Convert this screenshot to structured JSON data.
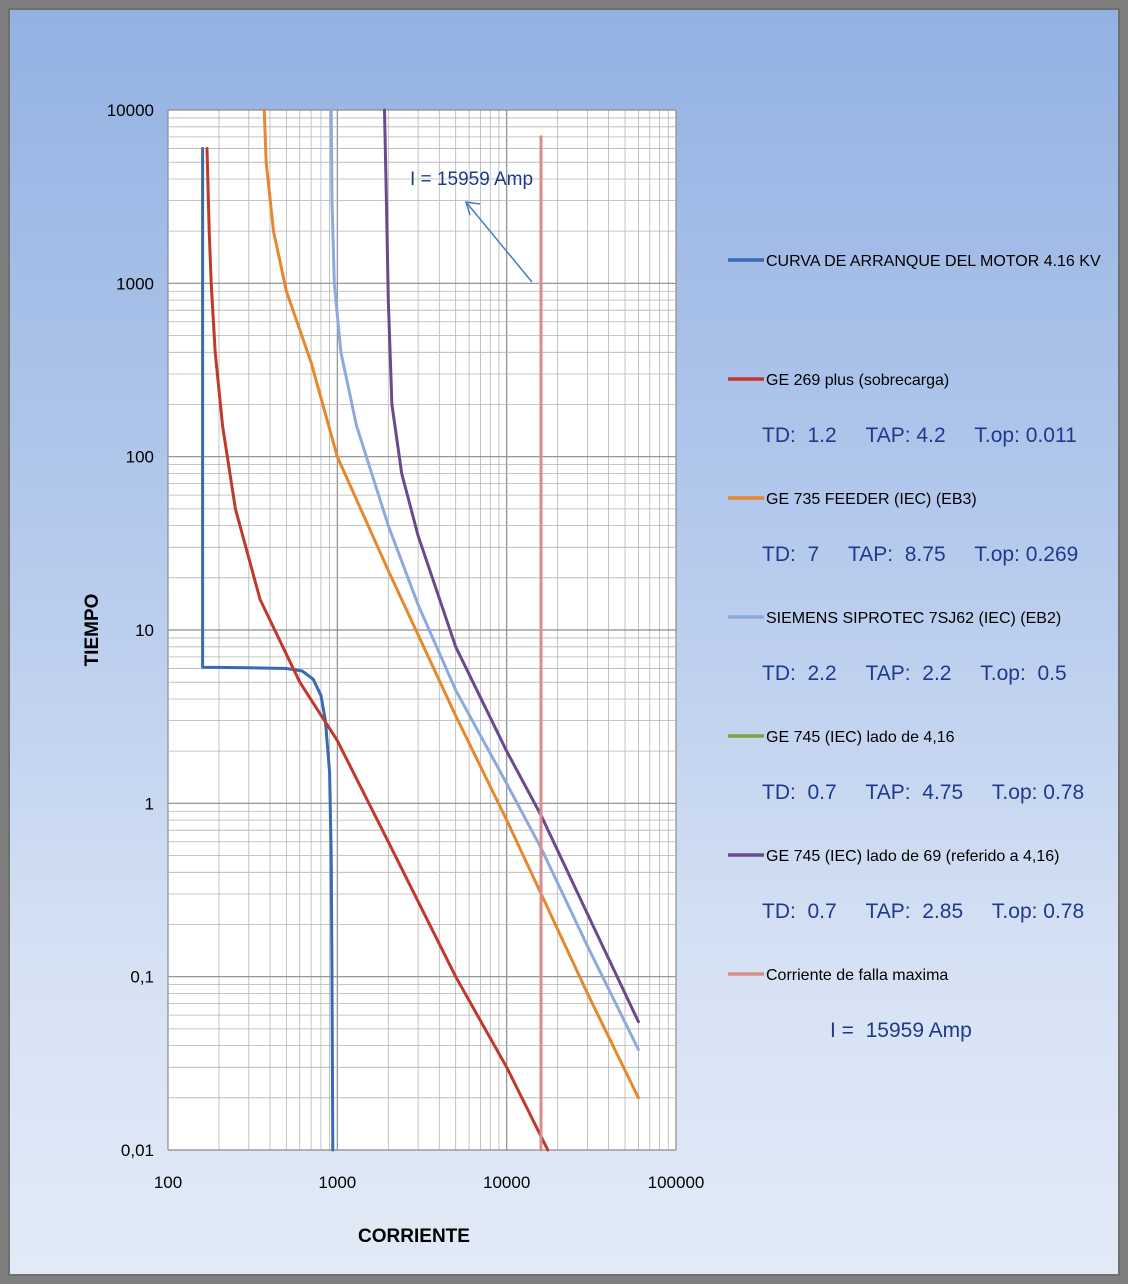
{
  "chart_data": {
    "type": "line",
    "x_scale": "log",
    "y_scale": "log",
    "xlim": [
      100,
      100000
    ],
    "ylim": [
      0.01,
      10000
    ],
    "grid": true,
    "legend_position": "right",
    "xlabel": "CORRIENTE",
    "ylabel": "TIEMPO",
    "x_ticks": [
      "100",
      "1000",
      "10000",
      "100000"
    ],
    "y_ticks": [
      "0,01",
      "0,1",
      "1",
      "10",
      "100",
      "1000",
      "10000"
    ],
    "annotation": {
      "text": "I =  15959 Amp",
      "points_to_x": 15959
    },
    "series": [
      {
        "name": "CURVA DE ARRANQUE DEL MOTOR 4.16 KV",
        "color": "#3a6bb0",
        "points": [
          [
            160,
            6000
          ],
          [
            160,
            6.1
          ],
          [
            300,
            6.05
          ],
          [
            500,
            6.0
          ],
          [
            620,
            5.8
          ],
          [
            720,
            5.2
          ],
          [
            800,
            4.2
          ],
          [
            850,
            3.0
          ],
          [
            880,
            2.0
          ],
          [
            900,
            1.5
          ],
          [
            920,
            0.5
          ],
          [
            930,
            0.1
          ],
          [
            940,
            0.01
          ]
        ]
      },
      {
        "name": "GE 269 plus (sobrecarga)",
        "color": "#c0392b",
        "sub": "TD:  1.2     TAP: 4.2     T.op: 0.011",
        "points": [
          [
            170,
            6000
          ],
          [
            175,
            2000
          ],
          [
            180,
            1000
          ],
          [
            190,
            400
          ],
          [
            210,
            150
          ],
          [
            250,
            50
          ],
          [
            350,
            15
          ],
          [
            600,
            5
          ],
          [
            1000,
            2.3
          ],
          [
            2000,
            0.6
          ],
          [
            5000,
            0.1
          ],
          [
            10000,
            0.03
          ],
          [
            17500,
            0.01
          ]
        ]
      },
      {
        "name": "GE 735 FEEDER (IEC) (EB3)",
        "color": "#e8872e",
        "sub": "TD:  7     TAP:  8.75     T.op: 0.269",
        "points": [
          [
            370,
            10000
          ],
          [
            380,
            5000
          ],
          [
            420,
            2000
          ],
          [
            500,
            900
          ],
          [
            700,
            350
          ],
          [
            1000,
            100
          ],
          [
            2000,
            22
          ],
          [
            5000,
            3.2
          ],
          [
            10000,
            0.8
          ],
          [
            16000,
            0.3
          ],
          [
            30000,
            0.08
          ],
          [
            60000,
            0.02
          ]
        ]
      },
      {
        "name": "SIEMENS SIPROTEC 7SJ62 (IEC) (EB2)",
        "color": "#8eaadc",
        "sub": "TD:  2.2     TAP:  2.2     T.op:  0.5",
        "points": [
          [
            920,
            10000
          ],
          [
            930,
            3000
          ],
          [
            960,
            1000
          ],
          [
            1050,
            400
          ],
          [
            1300,
            150
          ],
          [
            2000,
            40
          ],
          [
            3000,
            14
          ],
          [
            5000,
            4.5
          ],
          [
            10000,
            1.3
          ],
          [
            16000,
            0.55
          ],
          [
            30000,
            0.15
          ],
          [
            60000,
            0.038
          ]
        ]
      },
      {
        "name": "GE 745 (IEC) lado de 4,16",
        "color": "#77a83b",
        "sub": "TD:  0.7     TAP:  4.75     T.op: 0.78",
        "points": []
      },
      {
        "name": "GE 745 (IEC) lado de 69 (referido a 4,16)",
        "color": "#6a4a8c",
        "sub": "TD:  0.7     TAP:  2.85     T.op: 0.78",
        "points": [
          [
            1900,
            10000
          ],
          [
            1950,
            3000
          ],
          [
            2000,
            800
          ],
          [
            2100,
            200
          ],
          [
            2400,
            80
          ],
          [
            3000,
            35
          ],
          [
            5000,
            8
          ],
          [
            10000,
            2
          ],
          [
            16000,
            0.85
          ],
          [
            30000,
            0.23
          ],
          [
            60000,
            0.055
          ]
        ]
      },
      {
        "name": "Corriente de falla maxima",
        "color": "#d98c8c",
        "sub": "I =  15959 Amp",
        "points": [
          [
            15959,
            0.01
          ],
          [
            15959,
            7000
          ]
        ]
      }
    ]
  }
}
